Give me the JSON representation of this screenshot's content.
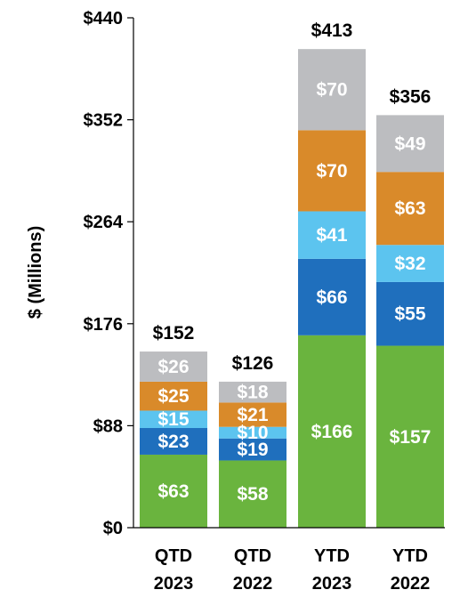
{
  "chart_data": {
    "type": "bar",
    "stacked": true,
    "ylabel": "$ (Millions)",
    "ylim": [
      0,
      440
    ],
    "yticks": [
      0,
      88,
      176,
      264,
      352,
      440
    ],
    "ytick_labels": [
      "$0",
      "$88",
      "$176",
      "$264",
      "$352",
      "$440"
    ],
    "grid": false,
    "legend": false,
    "categories": [
      [
        "QTD",
        "2023"
      ],
      [
        "QTD",
        "2022"
      ],
      [
        "YTD",
        "2023"
      ],
      [
        "YTD",
        "2022"
      ]
    ],
    "totals": [
      152,
      126,
      413,
      356
    ],
    "total_labels": [
      "$152",
      "$126",
      "$413",
      "$356"
    ],
    "series": [
      {
        "color": "#6ab43e",
        "values": [
          63,
          58,
          166,
          157
        ],
        "labels": [
          "$63",
          "$58",
          "$166",
          "$157"
        ]
      },
      {
        "color": "#1f6fbd",
        "values": [
          23,
          19,
          66,
          55
        ],
        "labels": [
          "$23",
          "$19",
          "$66",
          "$55"
        ]
      },
      {
        "color": "#5cc4ef",
        "values": [
          15,
          10,
          41,
          32
        ],
        "labels": [
          "$15",
          "$10",
          "$41",
          "$32"
        ]
      },
      {
        "color": "#d98a2a",
        "values": [
          25,
          21,
          70,
          63
        ],
        "labels": [
          "$25",
          "$21",
          "$70",
          "$63"
        ]
      },
      {
        "color": "#bcbdc0",
        "values": [
          26,
          18,
          70,
          49
        ],
        "labels": [
          "$26",
          "$18",
          "$70",
          "$49"
        ]
      }
    ]
  }
}
